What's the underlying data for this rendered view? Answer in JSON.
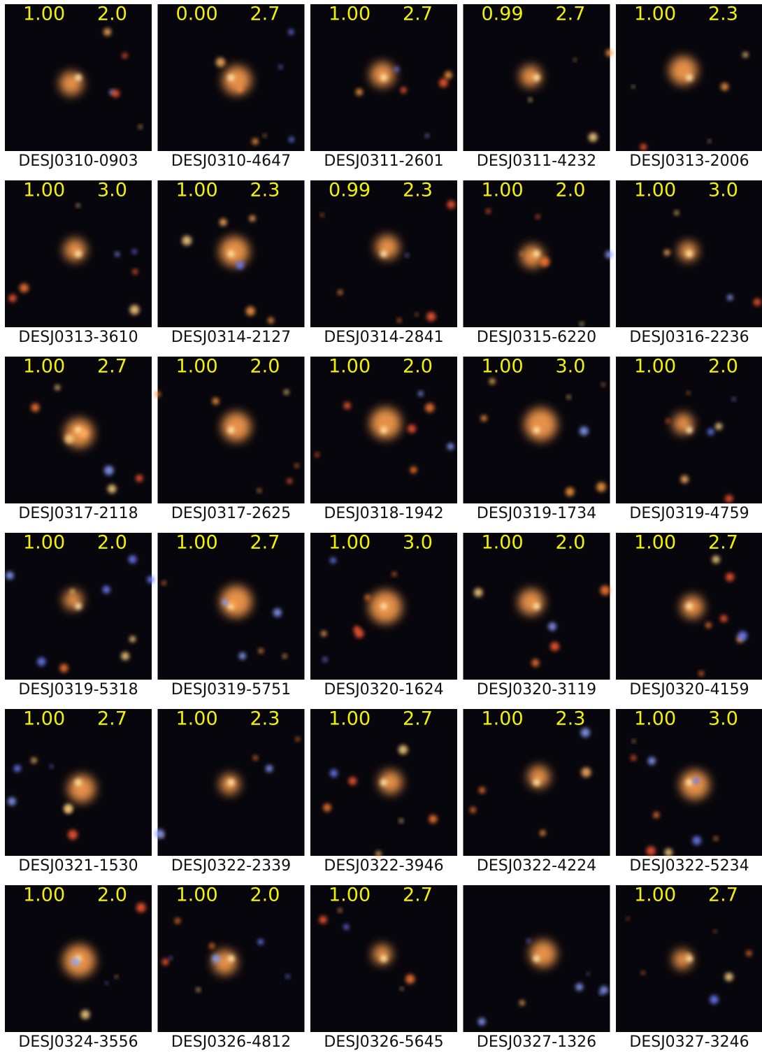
{
  "tiles": [
    {
      "score": "1.00",
      "grade": "2.0",
      "name": "DESJ0310-0903"
    },
    {
      "score": "0.00",
      "grade": "2.7",
      "name": "DESJ0310-4647"
    },
    {
      "score": "1.00",
      "grade": "2.7",
      "name": "DESJ0311-2601"
    },
    {
      "score": "0.99",
      "grade": "2.7",
      "name": "DESJ0311-4232"
    },
    {
      "score": "1.00",
      "grade": "2.3",
      "name": "DESJ0313-2006"
    },
    {
      "score": "1.00",
      "grade": "3.0",
      "name": "DESJ0313-3610"
    },
    {
      "score": "1.00",
      "grade": "2.3",
      "name": "DESJ0314-2127"
    },
    {
      "score": "0.99",
      "grade": "2.3",
      "name": "DESJ0314-2841"
    },
    {
      "score": "1.00",
      "grade": "2.0",
      "name": "DESJ0315-6220"
    },
    {
      "score": "1.00",
      "grade": "3.0",
      "name": "DESJ0316-2236"
    },
    {
      "score": "1.00",
      "grade": "2.7",
      "name": "DESJ0317-2118"
    },
    {
      "score": "1.00",
      "grade": "2.0",
      "name": "DESJ0317-2625"
    },
    {
      "score": "1.00",
      "grade": "2.0",
      "name": "DESJ0318-1942"
    },
    {
      "score": "1.00",
      "grade": "3.0",
      "name": "DESJ0319-1734"
    },
    {
      "score": "1.00",
      "grade": "2.0",
      "name": "DESJ0319-4759"
    },
    {
      "score": "1.00",
      "grade": "2.0",
      "name": "DESJ0319-5318"
    },
    {
      "score": "1.00",
      "grade": "2.7",
      "name": "DESJ0319-5751"
    },
    {
      "score": "1.00",
      "grade": "3.0",
      "name": "DESJ0320-1624"
    },
    {
      "score": "1.00",
      "grade": "2.0",
      "name": "DESJ0320-3119"
    },
    {
      "score": "1.00",
      "grade": "2.7",
      "name": "DESJ0320-4159"
    },
    {
      "score": "1.00",
      "grade": "2.7",
      "name": "DESJ0321-1530"
    },
    {
      "score": "1.00",
      "grade": "2.3",
      "name": "DESJ0322-2339"
    },
    {
      "score": "1.00",
      "grade": "2.7",
      "name": "DESJ0322-3946"
    },
    {
      "score": "1.00",
      "grade": "2.3",
      "name": "DESJ0322-4224"
    },
    {
      "score": "1.00",
      "grade": "3.0",
      "name": "DESJ0322-5234"
    },
    {
      "score": "1.00",
      "grade": "2.0",
      "name": "DESJ0324-3556"
    },
    {
      "score": "1.00",
      "grade": "2.0",
      "name": "DESJ0326-4812"
    },
    {
      "score": "1.00",
      "grade": "2.7",
      "name": "DESJ0326-5645"
    },
    {
      "name": "DESJ0327-1326"
    },
    {
      "score": "1.00",
      "grade": "2.7",
      "name": "DESJ0327-3246"
    }
  ]
}
